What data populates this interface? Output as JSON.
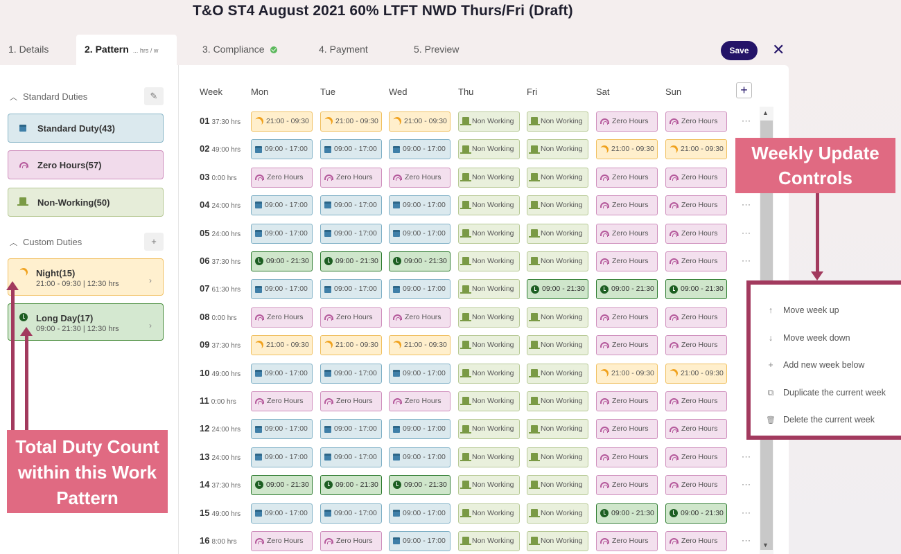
{
  "page": {
    "title": "T&O ST4 August 2021 60% LTFT NWD Thurs/Fri (Draft)"
  },
  "tabs": [
    {
      "label": "1. Details"
    },
    {
      "label": "2. Pattern",
      "sub": "... hrs / w"
    },
    {
      "label": "3. Compliance"
    },
    {
      "label": "4. Payment"
    },
    {
      "label": "5. Preview"
    }
  ],
  "toolbar": {
    "save_label": "Save",
    "close_label": "✕"
  },
  "sidebar": {
    "standard_heading": "Standard Duties",
    "custom_heading": "Custom Duties",
    "standard": [
      {
        "name": "Standard Duty(43)",
        "icon": "calendar-icon"
      },
      {
        "name": "Zero Hours(57)",
        "icon": "zero-hours-icon"
      },
      {
        "name": "Non-Working(50)",
        "icon": "door-icon"
      }
    ],
    "custom": [
      {
        "name": "Night(15)",
        "detail": "21:00 - 09:30 | 12:30 hrs",
        "icon": "moon-icon"
      },
      {
        "name": "Long Day(17)",
        "detail": "09:00 - 21:30 | 12:30 hrs",
        "icon": "clock-icon"
      }
    ]
  },
  "grid": {
    "week_header": "Week",
    "days": [
      "Mon",
      "Tue",
      "Wed",
      "Thu",
      "Fri",
      "Sat",
      "Sun"
    ],
    "add_week_label": "+",
    "more_label": "···",
    "weeks": [
      {
        "num": "01",
        "hrs": "37:30 hrs",
        "cells": [
          "N",
          "N",
          "N",
          "W",
          "W",
          "Z",
          "Z"
        ]
      },
      {
        "num": "02",
        "hrs": "49:00 hrs",
        "cells": [
          "S",
          "S",
          "S",
          "W",
          "W",
          "N",
          "N"
        ]
      },
      {
        "num": "03",
        "hrs": "0:00 hrs",
        "cells": [
          "Z",
          "Z",
          "Z",
          "W",
          "W",
          "Z",
          "Z"
        ]
      },
      {
        "num": "04",
        "hrs": "24:00 hrs",
        "cells": [
          "S",
          "S",
          "S",
          "W",
          "W",
          "Z",
          "Z"
        ]
      },
      {
        "num": "05",
        "hrs": "24:00 hrs",
        "cells": [
          "S",
          "S",
          "S",
          "W",
          "W",
          "Z",
          "Z"
        ]
      },
      {
        "num": "06",
        "hrs": "37:30 hrs",
        "cells": [
          "L",
          "L",
          "L",
          "W",
          "W",
          "Z",
          "Z"
        ]
      },
      {
        "num": "07",
        "hrs": "61:30 hrs",
        "cells": [
          "S",
          "S",
          "S",
          "W",
          "L",
          "L",
          "L"
        ]
      },
      {
        "num": "08",
        "hrs": "0:00 hrs",
        "cells": [
          "Z",
          "Z",
          "Z",
          "W",
          "W",
          "Z",
          "Z"
        ]
      },
      {
        "num": "09",
        "hrs": "37:30 hrs",
        "cells": [
          "N",
          "N",
          "N",
          "W",
          "W",
          "Z",
          "Z"
        ]
      },
      {
        "num": "10",
        "hrs": "49:00 hrs",
        "cells": [
          "S",
          "S",
          "S",
          "W",
          "W",
          "N",
          "N"
        ]
      },
      {
        "num": "11",
        "hrs": "0:00 hrs",
        "cells": [
          "Z",
          "Z",
          "Z",
          "W",
          "W",
          "Z",
          "Z"
        ]
      },
      {
        "num": "12",
        "hrs": "24:00 hrs",
        "cells": [
          "S",
          "S",
          "S",
          "W",
          "W",
          "Z",
          "Z"
        ]
      },
      {
        "num": "13",
        "hrs": "24:00 hrs",
        "cells": [
          "S",
          "S",
          "S",
          "W",
          "W",
          "Z",
          "Z"
        ]
      },
      {
        "num": "14",
        "hrs": "37:30 hrs",
        "cells": [
          "L",
          "L",
          "L",
          "W",
          "W",
          "Z",
          "Z"
        ]
      },
      {
        "num": "15",
        "hrs": "49:00 hrs",
        "cells": [
          "S",
          "S",
          "S",
          "W",
          "W",
          "L",
          "L"
        ]
      },
      {
        "num": "16",
        "hrs": "8:00 hrs",
        "cells": [
          "Z",
          "Z",
          "S",
          "W",
          "W",
          "Z",
          "Z"
        ]
      }
    ],
    "cell_types": {
      "S": {
        "label": "09:00 - 17:00",
        "cls": "std",
        "icon": "calendar-icon"
      },
      "Z": {
        "label": "Zero Hours",
        "cls": "zero",
        "icon": "zero-hours-icon"
      },
      "W": {
        "label": "Non Working",
        "cls": "nw",
        "icon": "door-icon"
      },
      "N": {
        "label": "21:00 - 09:30",
        "cls": "night",
        "icon": "moon-icon"
      },
      "L": {
        "label": "09:00 - 21:30",
        "cls": "ld",
        "icon": "clock-icon"
      }
    }
  },
  "week_menu": {
    "items": [
      {
        "label": "Move week up",
        "icon": "arrow-up-icon",
        "glyph": "↑"
      },
      {
        "label": "Move week down",
        "icon": "arrow-down-icon",
        "glyph": "↓"
      },
      {
        "label": "Add new week below",
        "icon": "plus-icon",
        "glyph": "+"
      },
      {
        "label": "Duplicate the current week",
        "icon": "duplicate-icon",
        "glyph": "⧉"
      },
      {
        "label": "Delete the current week",
        "icon": "trash-icon",
        "glyph": "🗑"
      }
    ]
  },
  "annotations": {
    "right": "Weekly Update Controls",
    "left": "Total Duty Count within this Work Pattern"
  },
  "colors": {
    "accent": "#241468",
    "annotation": "#e06a82",
    "annotation_line": "#a23a5e"
  }
}
